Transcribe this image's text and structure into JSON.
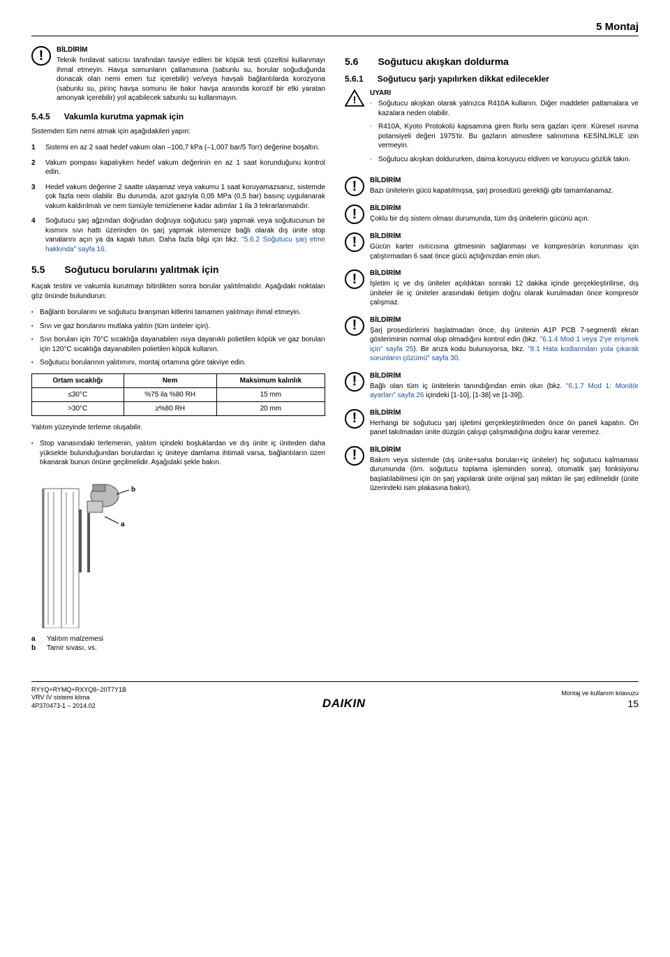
{
  "page_header": "5 Montaj",
  "left": {
    "notice1": {
      "title": "BİLDİRİM",
      "text": "Teknik hırdavat satıcısı tarafından tavsiye edilen bir köpük testi çözeltisi kullanmayı ihmal etmeyin. Havşa somunların çatlamasına (sabunlu su, borular soğuduğunda donacak olan nemi emen tuz içerebilir) ve/veya havşalı bağlantılarda korozyona (sabunlu su, pirinç havşa somunu ile bakır havşa arasında korozif bir etki yaratan amonyak içerebilir) yol açabilecek sabunlu su kullanmayın."
    },
    "sec545_num": "5.4.5",
    "sec545_title": "Vakumla kurutma yapmak için",
    "sec545_intro": "Sistemden tüm nemi atmak için aşağıdakileri yapın:",
    "sec545_items": [
      "Sistemi en az 2 saat hedef vakum olan –100,7 kPa (–1,007 bar/5 Torr) değerine boşaltın.",
      "Vakum pompası kapalıyken hedef vakum değerinin en az 1 saat korunduğunu kontrol edin.",
      "Hedef vakum değerine 2 saatte ulaşamaz veya vakumu 1 saat koruyamazsanız, sistemde çok fazla nem olabilir. Bu durumda, azot gazıyla 0,05 MPa (0,5 bar) basınç uygulanarak vakum kaldırılmalı ve nem tümüyle temizlenene kadar adımlar 1 ila 3 tekrarlanmalıdır.",
      "Soğutucu şarj ağzından doğrudan doğruya soğutucu şarjı yapmak veya soğutucunun bir kısmını sıvı hattı üzerinden ön şarj yapmak istemenize bağlı olarak dış ünite stop vanalarını açın ya da kapalı tutun. Daha fazla bilgi için bkz. "
    ],
    "sec545_link": "\"5.6.2 Soğutucu şarj etme hakkında\" sayfa 16",
    "sec55_num": "5.5",
    "sec55_title": "Soğutucu borularını yalıtmak için",
    "sec55_intro": "Kaçak testini ve vakumla kurutmayı bitirdikten sonra borular yalıtılmalıdır. Aşağıdaki noktaları göz önünde bulundurun:",
    "sec55_bullets": [
      "Bağlantı borularını ve soğutucu branşman kitlerini tamamen yalıtmayı ihmal etmeyin.",
      "Sıvı ve gaz borularını mutlaka yalıtın (tüm üniteler için).",
      "Sıvı boruları için 70°C sıcaklığa dayanabilen ısıya dayanıklı polietilen köpük ve gaz boruları için 120°C sıcaklığa dayanabilen polietilen köpük kullanın.",
      "Soğutucu borularının yalıtımını, montaj ortamına göre takviye edin."
    ],
    "table": {
      "headers": [
        "Ortam sıcaklığı",
        "Nem",
        "Maksimum kalınlık"
      ],
      "rows": [
        [
          "≤30°C",
          "%75 ila %80 RH",
          "15 mm"
        ],
        [
          ">30°C",
          "≥%80 RH",
          "20 mm"
        ]
      ]
    },
    "after_table_p": "Yalıtım yüzeyinde terleme oluşabilir.",
    "after_table_bullet": "Stop vanasındaki terlemenin, yalıtım içindeki boşluklardan ve dış ünite iç üniteden daha yüksekte bulunduğundan borulardan iç üniteye damlama ihtimali varsa, bağlantıların üzeri tıkanarak bunun önüne geçilmelidir. Aşağıdaki şekle bakın.",
    "legend_a": "Yalıtım malzemesi",
    "legend_b": "Tamir sıvası, vs."
  },
  "right": {
    "sec56_num": "5.6",
    "sec56_title": "Soğutucu akışkan doldurma",
    "sec561_num": "5.6.1",
    "sec561_title": "Soğutucu şarjı yapılırken dikkat edilecekler",
    "warning_title": "UYARI",
    "warning_items": [
      "Soğutucu akışkan olarak yalnızca R410A kullanın. Diğer maddeler patlamalara ve kazalara neden olabilir.",
      "R410A, Kyoto Protokolü kapsamına giren florlu sera gazları içerir. Küresel ısınma potansiyeli değeri 1975'tir. Bu gazların atmosfere salınımına KESİNLİKLE izin vermeyin.",
      "Soğutucu akışkan doldururken, daima koruyucu eldiven ve koruyucu gözlük takın."
    ],
    "notices": [
      {
        "title": "BİLDİRİM",
        "text": "Bazı ünitelerin gücü kapatılmışsa, şarj prosedürü gerektiği gibi tamamlanamaz."
      },
      {
        "title": "BİLDİRİM",
        "text": "Çoklu bir dış sistem olması durumunda, tüm dış ünitelerin gücünü açın."
      },
      {
        "title": "BİLDİRİM",
        "text": "Gücün karter ısıtıcısına gitmesinin sağlanması ve kompresörün korunması için çalıştırmadan 6 saat önce gücü açtığınızdan emin olun."
      },
      {
        "title": "BİLDİRİM",
        "text": "İşletim iç ve dış üniteler açıldıktan sonraki 12 dakika içinde gerçekleştirilirse, dış üniteler ile iç üniteler arasındaki iletişim doğru olarak kurulmadan önce kompresör çalışmaz."
      },
      {
        "title": "BİLDİRİM",
        "text": "",
        "pre": "Şarj prosedürlerini başlatmadan önce, dış ünitenin A1P PCB 7-segmentli ekran gösteriminin normal olup olmadığını kontrol edin (bkz. ",
        "link1": "\"6.1.4 Mod 1 veya 2'ye erişmek için\" sayfa 25",
        "mid": "). Bir arıza kodu bulunuyorsa, bkz. ",
        "link2": "\"8.1 Hata kodlarından yola çıkarak sorunların çözümü\" sayfa 30",
        "post": "."
      },
      {
        "title": "BİLDİRİM",
        "text": "",
        "pre": "Bağlı olan tüm iç ünitelerin tanındığından emin olun (bkz. ",
        "link1": "\"6.1.7 Mod 1: Monitör ayarları\" sayfa 26",
        "post": " içindeki [1-10], [1-38] ve [1-39])."
      },
      {
        "title": "BİLDİRİM",
        "text": "Herhangi bir soğutucu şarj işletimi gerçekleştirilmeden önce ön paneli kapatın. Ön panel takılmadan ünite düzgün çalışıp çalışmadığına doğru karar veremez."
      },
      {
        "title": "BİLDİRİM",
        "text": "Bakım veya sistemde (dış ünite+saha boruları+iç üniteler) hiç soğutucu kalmaması durumunda (örn. soğutucu toplama işleminden sonra), otomatik şarj fonksiyonu başlatılabilmesi için ön şarj yapılarak ünite orijinal şarj miktarı ile şarj edilmelidir (ünite üzerindeki isim plakasına bakın)."
      }
    ]
  },
  "footer": {
    "l1": "RYYQ+RYMQ+RXYQ8~20T7Y1B",
    "l2": "VRV IV sistemi klima",
    "l3": "4P370473-1 – 2014.02",
    "brand": "DAIKIN",
    "r1": "Montaj ve kullanım kılavuzu",
    "r2": "15"
  }
}
